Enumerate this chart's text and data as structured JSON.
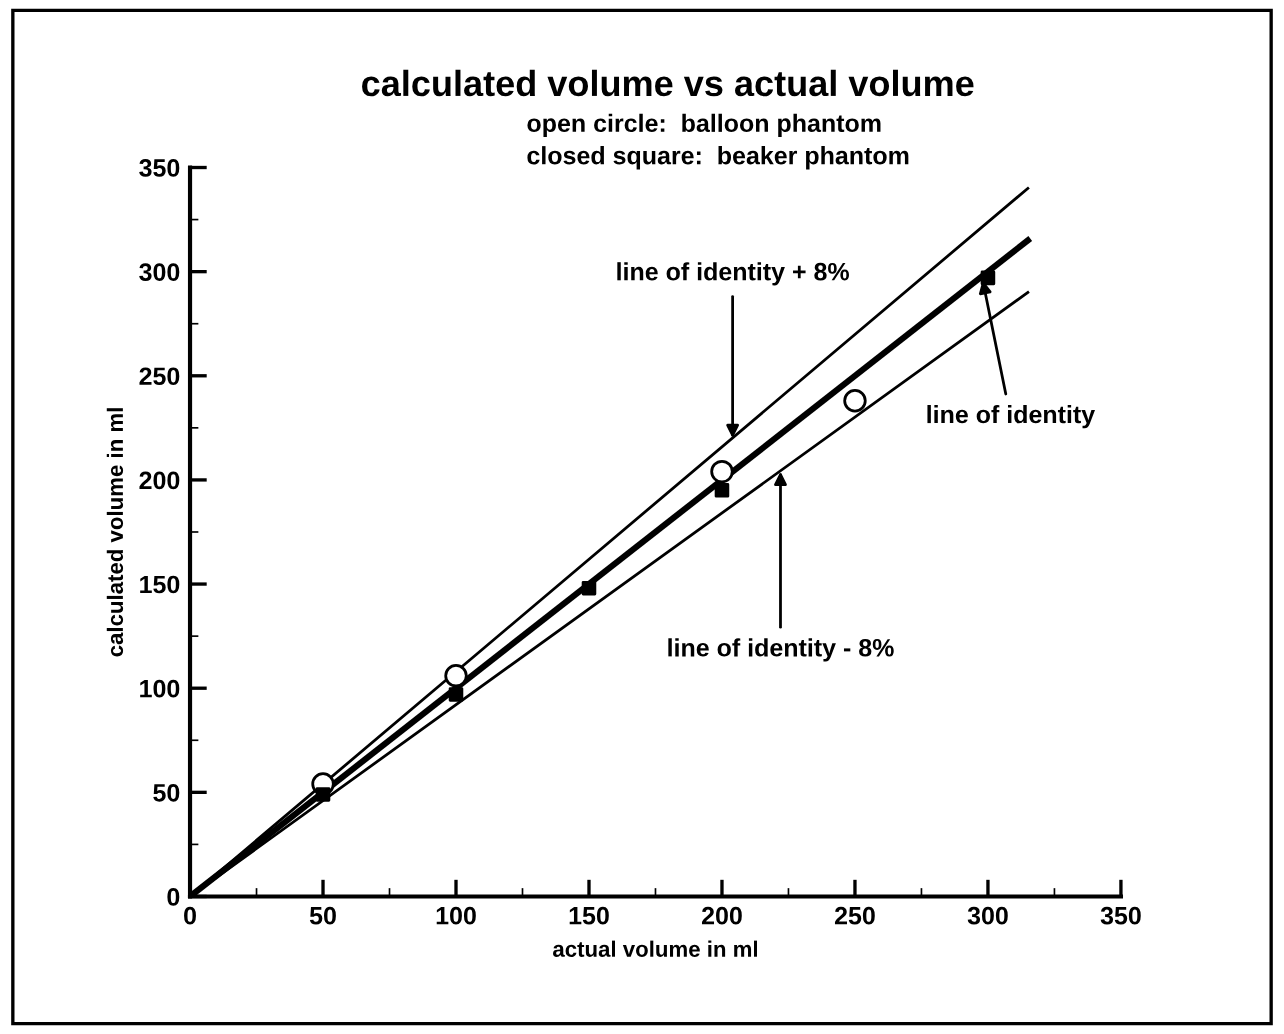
{
  "chart_data": {
    "type": "scatter",
    "title": "calculated volume vs actual volume",
    "subtitle": "open circle:  balloon phantom\nclosed square:  beaker phantom",
    "xlabel": "actual volume in ml",
    "ylabel": "calculated volume in ml",
    "xlim": [
      0,
      350
    ],
    "ylim": [
      0,
      350
    ],
    "xticks": [
      0,
      50,
      100,
      150,
      200,
      250,
      300,
      350
    ],
    "yticks": [
      0,
      50,
      100,
      150,
      200,
      250,
      300,
      350
    ],
    "grid": false,
    "series": [
      {
        "marker": "circle",
        "color": "#000000",
        "x": [
          50,
          100,
          200,
          250
        ],
        "values": [
          54,
          106,
          204,
          238
        ]
      },
      {
        "marker": "square",
        "color": "#000000",
        "x": [
          50,
          100,
          150,
          200,
          300
        ],
        "values": [
          49,
          97,
          148,
          195,
          297
        ]
      },
      {
        "type": "line",
        "marker": "none",
        "color": "#000000",
        "x": [
          0,
          315
        ],
        "values": [
          0,
          315
        ]
      },
      {
        "type": "line",
        "marker": "none",
        "color": "#000000",
        "x": [
          0,
          315
        ],
        "values": [
          0,
          340
        ]
      },
      {
        "type": "line",
        "marker": "none",
        "color": "#000000",
        "x": [
          0,
          315
        ],
        "values": [
          0,
          290
        ]
      }
    ],
    "annotations": [
      {
        "text": "line of identity + 8%",
        "x": 204,
        "y": 220
      },
      {
        "text": "line of identity",
        "x": 298,
        "y": 296
      },
      {
        "text": "line of identity - 8%",
        "x": 222,
        "y": 204
      }
    ]
  }
}
